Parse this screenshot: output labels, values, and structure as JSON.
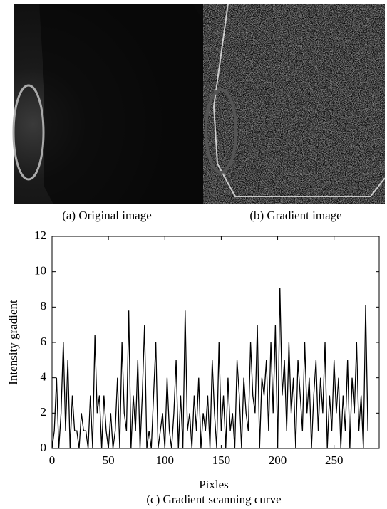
{
  "figure": {
    "caption_a": "(a) Original image",
    "caption_b": "(b) Gradient image"
  },
  "chart_data": {
    "type": "line",
    "caption": "(c) Gradient scanning curve",
    "xlabel": "Pixles",
    "ylabel": "Intensity gradient",
    "xlim": [
      0,
      290
    ],
    "ylim": [
      0,
      12
    ],
    "xticks": [
      0,
      50,
      100,
      150,
      200,
      250
    ],
    "yticks": [
      0,
      2,
      4,
      6,
      8,
      10,
      12
    ],
    "series": [
      {
        "color": "#000000",
        "x": [
          0,
          2,
          4,
          6,
          8,
          10,
          12,
          14,
          16,
          18,
          20,
          22,
          24,
          26,
          28,
          30,
          32,
          34,
          36,
          38,
          40,
          42,
          44,
          46,
          48,
          50,
          52,
          54,
          56,
          58,
          60,
          62,
          64,
          66,
          68,
          70,
          72,
          74,
          76,
          78,
          80,
          82,
          84,
          86,
          88,
          90,
          92,
          94,
          96,
          98,
          100,
          102,
          104,
          106,
          108,
          110,
          112,
          114,
          116,
          118,
          120,
          122,
          124,
          126,
          128,
          130,
          132,
          134,
          136,
          138,
          140,
          142,
          144,
          146,
          148,
          150,
          152,
          154,
          156,
          158,
          160,
          162,
          164,
          166,
          168,
          170,
          172,
          174,
          176,
          178,
          180,
          182,
          184,
          186,
          188,
          190,
          192,
          194,
          196,
          198,
          200,
          202,
          204,
          206,
          208,
          210,
          212,
          214,
          216,
          218,
          220,
          222,
          224,
          226,
          228,
          230,
          232,
          234,
          236,
          238,
          240,
          242,
          244,
          246,
          248,
          250,
          252,
          254,
          256,
          258,
          260,
          262,
          264,
          266,
          268,
          270,
          272,
          274,
          276,
          278,
          280
        ],
        "values": [
          0,
          1,
          4,
          0,
          2,
          6,
          1,
          5,
          0,
          3,
          1,
          1,
          0,
          2,
          1,
          1,
          0,
          3,
          0,
          6.4,
          2,
          3,
          0,
          3,
          1,
          0,
          2,
          0,
          1,
          4,
          0,
          6,
          2,
          1,
          7.8,
          0,
          3,
          1,
          5,
          0,
          3,
          7,
          0,
          1,
          0,
          3,
          6,
          0,
          1,
          2,
          0,
          4,
          1,
          0,
          2,
          5,
          0,
          3,
          0,
          7.8,
          1,
          2,
          0,
          3,
          1,
          4,
          0,
          2,
          1,
          3,
          0,
          5,
          2,
          0,
          6,
          1,
          3,
          0,
          4,
          1,
          2,
          0,
          5,
          3,
          0,
          4,
          2,
          1,
          6,
          3,
          2,
          7,
          0,
          4,
          3,
          5,
          1,
          6,
          2,
          7,
          0,
          9.1,
          3,
          5,
          1,
          6,
          2,
          4,
          0,
          5,
          3,
          1,
          6,
          2,
          4,
          0,
          3,
          5,
          1,
          4,
          2,
          6,
          0,
          3,
          1,
          5,
          2,
          4,
          0,
          3,
          1,
          5,
          0,
          4,
          2,
          6,
          1,
          3,
          0,
          8.1,
          1
        ]
      }
    ]
  }
}
